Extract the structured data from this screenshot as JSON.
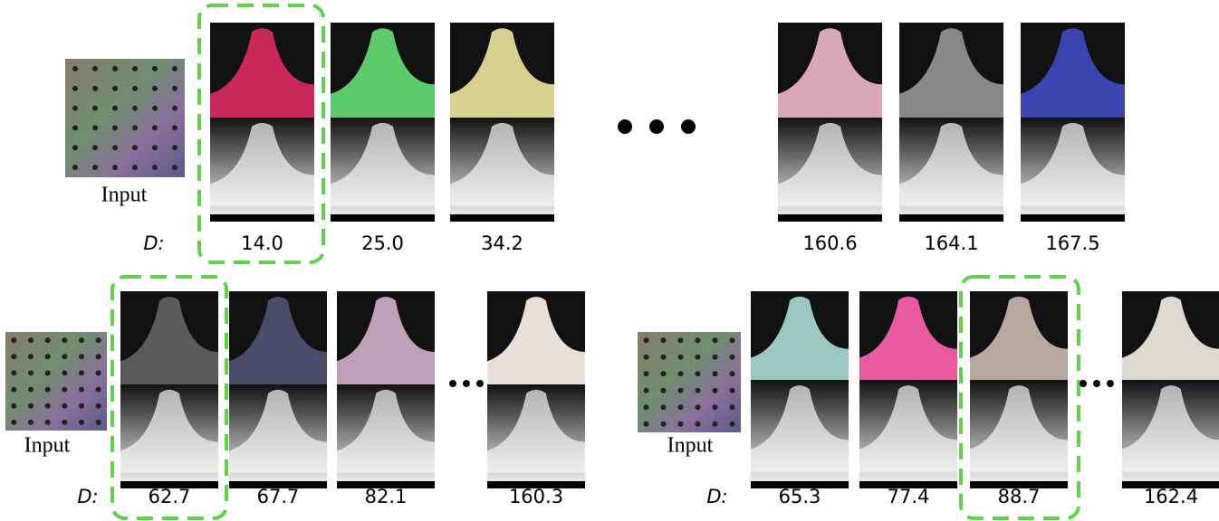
{
  "panels": [
    {
      "input_label": "Input",
      "d_label": "D:",
      "distances": [
        "14.0",
        "25.0",
        "34.2",
        "160.6",
        "164.1",
        "167.5"
      ]
    },
    {
      "input_label": "Input",
      "d_label": "D:",
      "distances": [
        "62.7",
        "67.7",
        "82.1",
        "160.3"
      ]
    },
    {
      "input_label": "Input",
      "d_label": "D:",
      "distances": [
        "65.3",
        "77.4",
        "88.7",
        "162.4"
      ]
    }
  ]
}
